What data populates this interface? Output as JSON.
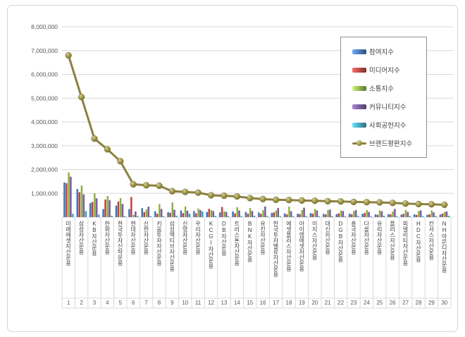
{
  "window": {
    "background": "#ffffff",
    "frame_border_color": "#d6d6d6"
  },
  "legend": {
    "position": "top-right",
    "items": [
      {
        "label": "참여지수",
        "type": "bar",
        "color": "#4f81bd"
      },
      {
        "label": "미디어지수",
        "type": "bar",
        "color": "#c0504d"
      },
      {
        "label": "소통지수",
        "type": "bar",
        "color": "#9bbb59"
      },
      {
        "label": "커뮤니티지수",
        "type": "bar",
        "color": "#8064a2"
      },
      {
        "label": "사회공헌지수",
        "type": "bar",
        "color": "#4bacc6"
      },
      {
        "label": "브랜드평판지수",
        "type": "line",
        "color": "#9c9246"
      }
    ]
  },
  "chart_data": {
    "type": "bar",
    "subtype": "combo-clustered-bars-with-line",
    "title": "",
    "xlabel": "",
    "ylabel": "",
    "grid": true,
    "y_axis": {
      "min": 0,
      "max": 8000000,
      "step": 1000000,
      "tick_labels": [
        "8,000,000",
        "7,000,000",
        "6,000,000",
        "5,000,000",
        "4,000,000",
        "3,000,000",
        "2,000,000",
        "1,000,000"
      ]
    },
    "categories": [
      "미래에셋자산운용",
      "삼성자산운용",
      "KB자산운용",
      "한화자산운용",
      "한국투자신탁운용",
      "현대자산운용",
      "신한자산운용",
      "키움투자자산운용",
      "삼성액티브자산운용",
      "신영자산운용",
      "우리자산운용",
      "KCGI자산운용",
      "DB자산운용",
      "트러스톤자산운용",
      "BNK자산운용",
      "유진자산운용",
      "한국투자밸류자산운용",
      "에셋플러스자산운용",
      "아이엠에셋자산운용",
      "이지스자산운용",
      "대신자산운용",
      "DGB자산운용",
      "흥국자산운용",
      "다올자산운용",
      "유리자산운용",
      "플러스자산운용",
      "피델리티자산운용",
      "HDC자산운용",
      "칸서스자산운용",
      "NH아문디자산운용"
    ],
    "rank_labels": [
      "1",
      "2",
      "3",
      "4",
      "5",
      "6",
      "7",
      "8",
      "9",
      "10",
      "11",
      "12",
      "13",
      "14",
      "15",
      "16",
      "17",
      "18",
      "19",
      "20",
      "21",
      "22",
      "23",
      "24",
      "25",
      "26",
      "27",
      "28",
      "29",
      "30"
    ],
    "series": [
      {
        "name": "참여지수",
        "type": "bar",
        "color": "#4f81bd",
        "values": [
          1460000,
          1180000,
          590000,
          340000,
          490000,
          340000,
          380000,
          250000,
          210000,
          280000,
          260000,
          220000,
          200000,
          240000,
          220000,
          200000,
          180000,
          160000,
          150000,
          170000,
          140000,
          130000,
          150000,
          140000,
          120000,
          130000,
          110000,
          120000,
          100000,
          110000
        ]
      },
      {
        "name": "미디어지수",
        "type": "bar",
        "color": "#c0504d",
        "values": [
          1430000,
          1050000,
          640000,
          740000,
          660000,
          850000,
          220000,
          150000,
          180000,
          170000,
          160000,
          350000,
          430000,
          160000,
          150000,
          140000,
          200000,
          120000,
          130000,
          150000,
          120000,
          160000,
          120000,
          180000,
          100000,
          120000,
          140000,
          100000,
          120000,
          150000
        ]
      },
      {
        "name": "소통지수",
        "type": "bar",
        "color": "#9bbb59",
        "values": [
          1880000,
          1330000,
          1000000,
          890000,
          800000,
          100000,
          320000,
          550000,
          620000,
          450000,
          360000,
          300000,
          250000,
          420000,
          380000,
          300000,
          280000,
          450000,
          300000,
          350000,
          300000,
          280000,
          260000,
          300000,
          280000,
          240000,
          300000,
          260000,
          280000,
          220000
        ]
      },
      {
        "name": "커뮤니티지수",
        "type": "bar",
        "color": "#8064a2",
        "values": [
          1700000,
          960000,
          790000,
          710000,
          560000,
          240000,
          440000,
          350000,
          310000,
          270000,
          300000,
          260000,
          220000,
          280000,
          260000,
          450000,
          380000,
          250000,
          400000,
          280000,
          320000,
          260000,
          300000,
          220000,
          250000,
          350000,
          220000,
          280000,
          200000,
          240000
        ]
      },
      {
        "name": "사회공헌지수",
        "type": "bar",
        "color": "#4bacc6",
        "values": [
          140000,
          260000,
          110000,
          60000,
          50000,
          50000,
          40000,
          40000,
          60000,
          150000,
          240000,
          50000,
          40000,
          50000,
          60000,
          50000,
          40000,
          40000,
          50000,
          40000,
          50000,
          40000,
          50000,
          40000,
          60000,
          40000,
          50000,
          40000,
          50000,
          60000
        ]
      },
      {
        "name": "브랜드평판지수",
        "type": "line",
        "color": "#9c9246",
        "values": [
          6800000,
          5050000,
          3300000,
          2850000,
          2350000,
          1380000,
          1340000,
          1320000,
          1090000,
          1060000,
          1030000,
          920000,
          900000,
          870000,
          800000,
          760000,
          730000,
          720000,
          700000,
          690000,
          670000,
          660000,
          640000,
          630000,
          620000,
          600000,
          570000,
          550000,
          540000,
          520000
        ]
      }
    ],
    "style": {
      "gridline_color": "#d9d9d9",
      "axis_text_color": "#595959",
      "category_text_color": "#3f3f3f",
      "line_stroke_color": "#8a8140"
    }
  }
}
